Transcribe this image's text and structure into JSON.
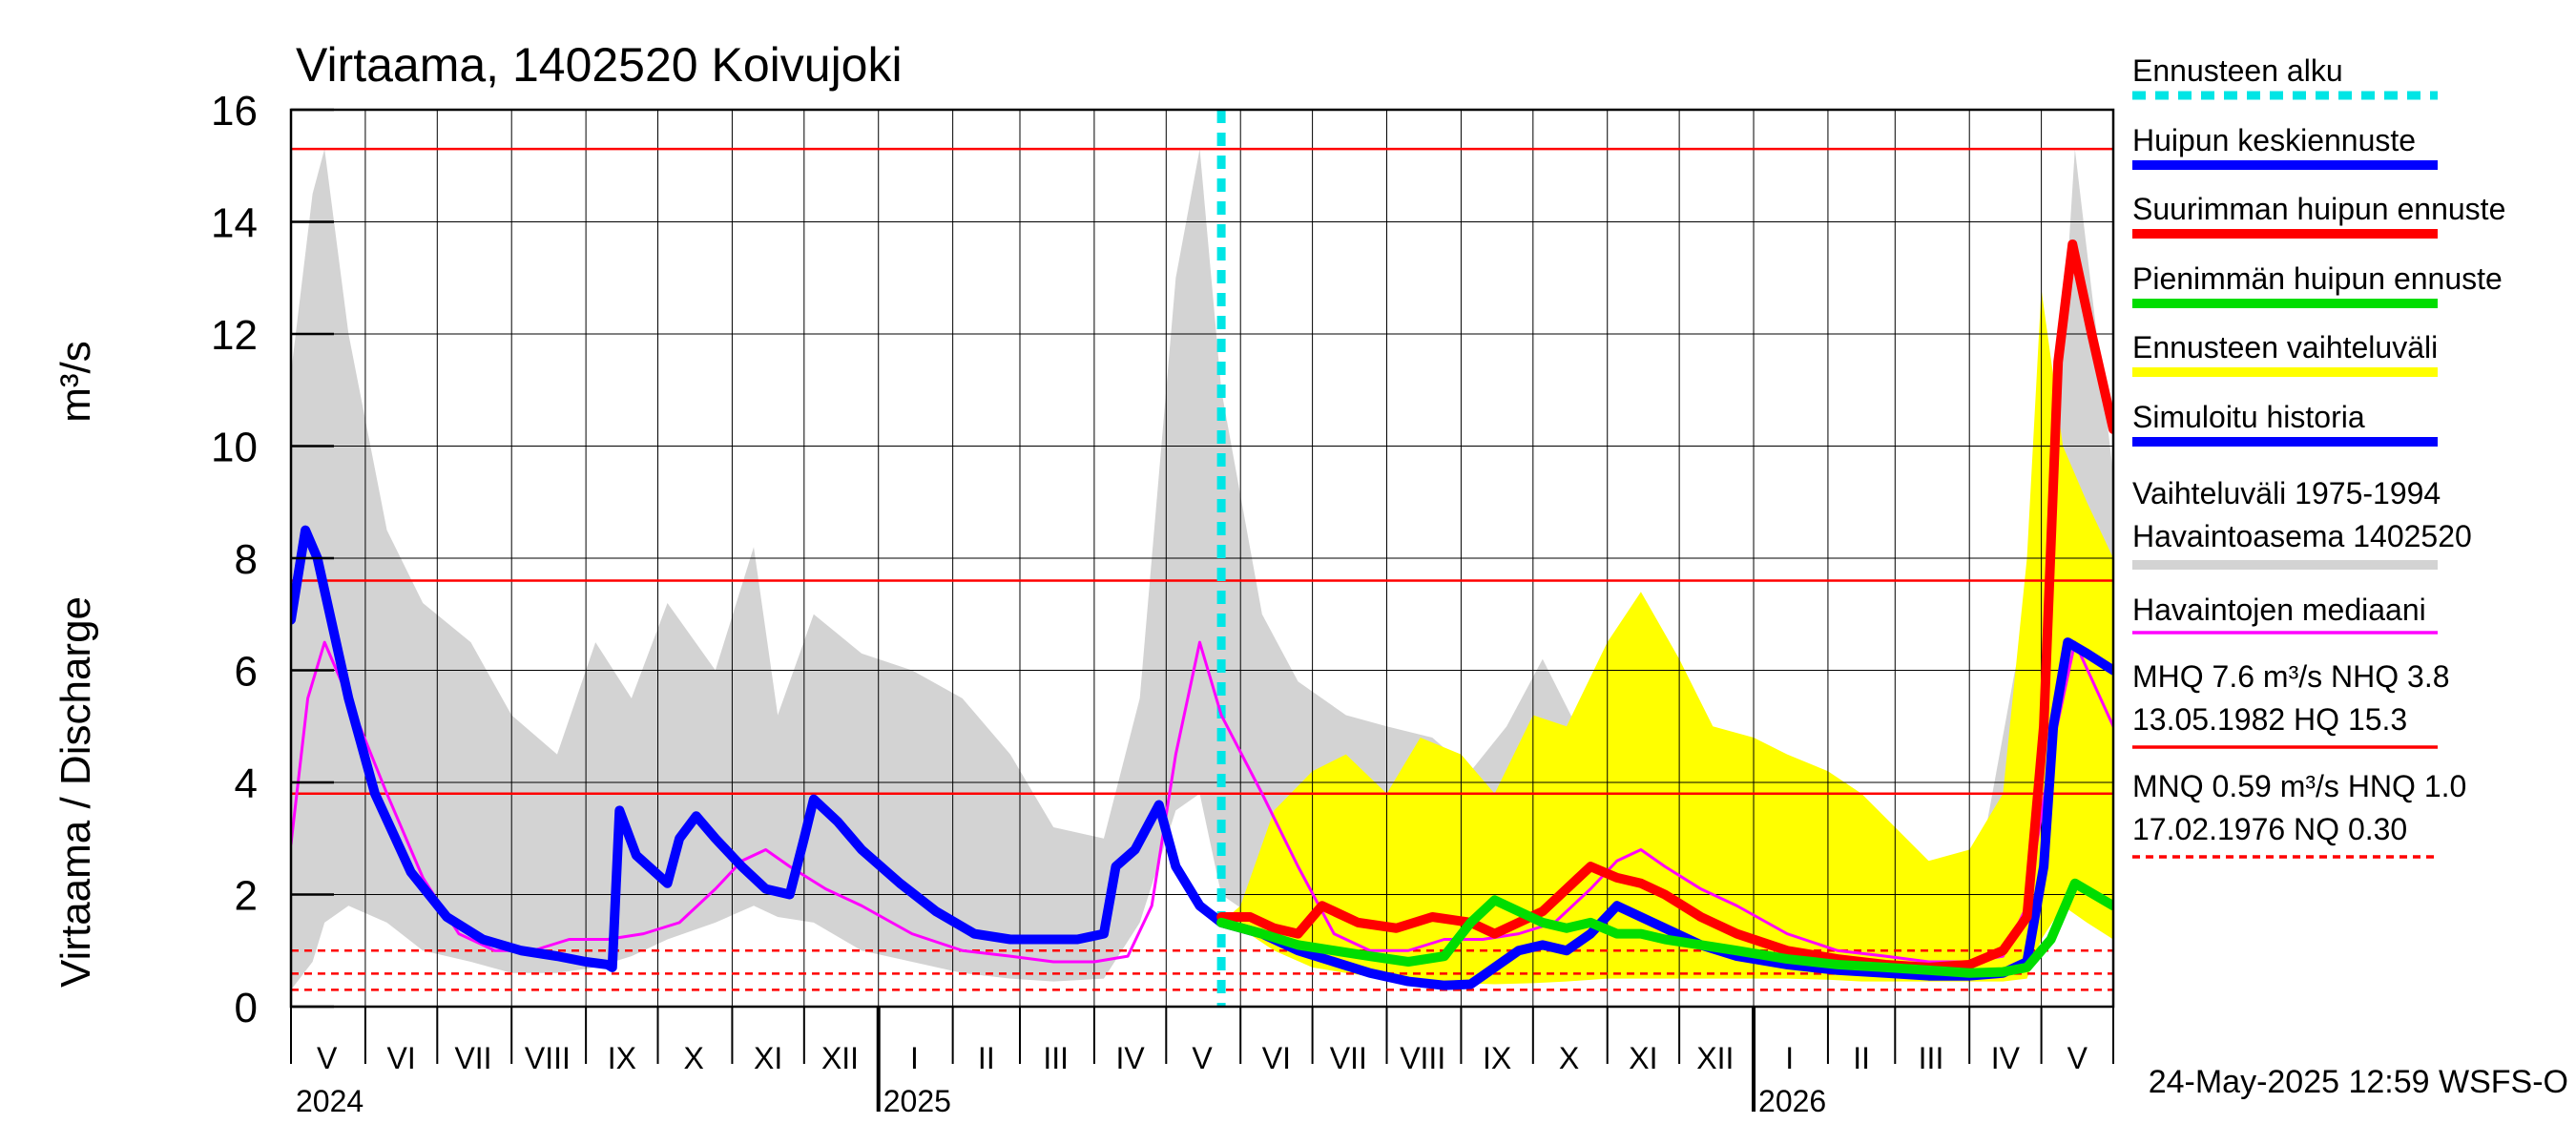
{
  "chart_data": {
    "type": "line",
    "title": "Virtaama, 1402520 Koivujoki",
    "ylabel": "Virtaama / Discharge",
    "yunit": "m³/s",
    "ylim": [
      0,
      16
    ],
    "yticks": [
      0,
      2,
      4,
      6,
      8,
      10,
      12,
      14,
      16
    ],
    "xlim": [
      "2024-05-01",
      "2026-05-31"
    ],
    "grid": true,
    "legend_position": "right",
    "month_labels": [
      {
        "label": "V",
        "date": "2024-05-16"
      },
      {
        "label": "VI",
        "date": "2024-06-16"
      },
      {
        "label": "VII",
        "date": "2024-07-16"
      },
      {
        "label": "VIII",
        "date": "2024-08-16"
      },
      {
        "label": "IX",
        "date": "2024-09-16"
      },
      {
        "label": "X",
        "date": "2024-10-16"
      },
      {
        "label": "XI",
        "date": "2024-11-16"
      },
      {
        "label": "XII",
        "date": "2024-12-16"
      },
      {
        "label": "I",
        "date": "2025-01-16"
      },
      {
        "label": "II",
        "date": "2025-02-15"
      },
      {
        "label": "III",
        "date": "2025-03-16"
      },
      {
        "label": "IV",
        "date": "2025-04-16"
      },
      {
        "label": "V",
        "date": "2025-05-16"
      },
      {
        "label": "VI",
        "date": "2025-06-16"
      },
      {
        "label": "VII",
        "date": "2025-07-16"
      },
      {
        "label": "VIII",
        "date": "2025-08-16"
      },
      {
        "label": "IX",
        "date": "2025-09-16"
      },
      {
        "label": "X",
        "date": "2025-10-16"
      },
      {
        "label": "XI",
        "date": "2025-11-16"
      },
      {
        "label": "XII",
        "date": "2025-12-16"
      },
      {
        "label": "I",
        "date": "2026-01-16"
      },
      {
        "label": "II",
        "date": "2026-02-15"
      },
      {
        "label": "III",
        "date": "2026-03-16"
      },
      {
        "label": "IV",
        "date": "2026-04-16"
      },
      {
        "label": "V",
        "date": "2026-05-16"
      }
    ],
    "year_labels": [
      {
        "label": "2024",
        "date": "2024-05-01"
      },
      {
        "label": "2025",
        "date": "2025-01-01"
      },
      {
        "label": "2026",
        "date": "2026-01-01"
      }
    ],
    "forecast_start": "2025-05-24",
    "reference_lines": [
      {
        "value": 15.3,
        "style": "solid",
        "color": "#ff0000"
      },
      {
        "value": 7.6,
        "style": "solid",
        "color": "#ff0000"
      },
      {
        "value": 3.8,
        "style": "solid",
        "color": "#ff0000"
      },
      {
        "value": 1.0,
        "style": "dashed",
        "color": "#ff0000"
      },
      {
        "value": 0.59,
        "style": "dashed",
        "color": "#ff0000"
      },
      {
        "value": 0.3,
        "style": "dashed",
        "color": "#ff0000"
      }
    ],
    "series": [
      {
        "name": "Vaihteluväli 1975-1994 Havaintoasema 1402520",
        "kind": "band",
        "color": "#d3d3d3",
        "x": [
          "2024-05-01",
          "2024-05-10",
          "2024-05-15",
          "2024-05-25",
          "2024-06-10",
          "2024-06-25",
          "2024-07-15",
          "2024-08-01",
          "2024-08-20",
          "2024-09-05",
          "2024-09-20",
          "2024-10-05",
          "2024-10-25",
          "2024-11-10",
          "2024-11-20",
          "2024-12-05",
          "2024-12-25",
          "2025-01-15",
          "2025-02-05",
          "2025-02-25",
          "2025-03-15",
          "2025-04-05",
          "2025-04-20",
          "2025-05-05",
          "2025-05-15",
          "2025-05-24",
          "2025-06-10",
          "2025-06-25",
          "2025-07-15",
          "2025-08-01",
          "2025-08-20",
          "2025-09-05",
          "2025-09-20",
          "2025-10-05",
          "2025-10-25",
          "2025-11-10",
          "2025-11-20",
          "2025-12-05",
          "2025-12-25",
          "2026-01-15",
          "2026-02-05",
          "2026-02-25",
          "2026-03-15",
          "2026-04-05",
          "2026-04-20",
          "2026-05-05",
          "2026-05-15",
          "2026-05-31"
        ],
        "upper": [
          11.3,
          14.5,
          15.3,
          12,
          8.5,
          7.2,
          6.5,
          5.2,
          4.5,
          6.5,
          5.5,
          7.2,
          6,
          8.2,
          5.2,
          7,
          6.3,
          6,
          5.5,
          4.5,
          3.2,
          3,
          5.5,
          13,
          15.3,
          11,
          7,
          5.8,
          5.2,
          5,
          4.8,
          4.2,
          5,
          6.2,
          4.5,
          5.2,
          4.3,
          4.8,
          4.2,
          4.2,
          3.5,
          3,
          2.6,
          2.5,
          6,
          8.5,
          15.3,
          9.5
        ],
        "lower": [
          0.3,
          0.8,
          1.5,
          1.8,
          1.5,
          1.0,
          0.8,
          0.6,
          0.6,
          0.7,
          0.9,
          1.2,
          1.5,
          1.8,
          1.6,
          1.5,
          1.0,
          0.8,
          0.6,
          0.5,
          0.45,
          0.5,
          1.5,
          3.5,
          3.8,
          2.0,
          1.5,
          1.0,
          0.8,
          0.6,
          0.6,
          0.7,
          0.9,
          1.2,
          1.5,
          1.8,
          1.6,
          1.5,
          1.0,
          0.8,
          0.6,
          0.5,
          0.45,
          0.5,
          1.5,
          3.5,
          4.0,
          3.0
        ]
      },
      {
        "name": "Ennusteen vaihteluväli",
        "kind": "band",
        "color": "#ffff00",
        "x": [
          "2025-05-24",
          "2025-06-01",
          "2025-06-15",
          "2025-07-01",
          "2025-07-15",
          "2025-08-01",
          "2025-08-15",
          "2025-09-01",
          "2025-09-15",
          "2025-10-01",
          "2025-10-15",
          "2025-11-01",
          "2025-11-15",
          "2025-12-01",
          "2025-12-15",
          "2026-01-01",
          "2026-01-15",
          "2026-02-01",
          "2026-02-15",
          "2026-03-01",
          "2026-03-15",
          "2026-04-01",
          "2026-04-15",
          "2026-04-25",
          "2026-05-01",
          "2026-05-10",
          "2026-05-20",
          "2026-05-31"
        ],
        "upper": [
          1.5,
          1.8,
          3.5,
          4.2,
          4.5,
          3.8,
          4.8,
          4.5,
          3.8,
          5.2,
          5,
          6.5,
          7.4,
          6.2,
          5,
          4.8,
          4.5,
          4.2,
          3.8,
          3.2,
          2.6,
          2.8,
          3.8,
          8,
          12.8,
          10,
          9,
          8
        ],
        "lower": [
          1.5,
          1.4,
          1.0,
          0.7,
          0.6,
          0.5,
          0.45,
          0.42,
          0.4,
          0.42,
          0.45,
          0.5,
          0.5,
          0.5,
          0.5,
          0.5,
          0.5,
          0.48,
          0.45,
          0.45,
          0.45,
          0.45,
          0.45,
          0.5,
          1.2,
          1.8,
          1.5,
          1.2
        ]
      },
      {
        "name": "Havaintojen mediaani",
        "kind": "line",
        "color": "#ff00ff",
        "width": 3,
        "x": [
          "2024-05-01",
          "2024-05-08",
          "2024-05-15",
          "2024-05-25",
          "2024-06-10",
          "2024-06-25",
          "2024-07-10",
          "2024-07-25",
          "2024-08-10",
          "2024-08-25",
          "2024-09-10",
          "2024-09-25",
          "2024-10-10",
          "2024-10-25",
          "2024-11-05",
          "2024-11-15",
          "2024-11-25",
          "2024-12-10",
          "2024-12-25",
          "2025-01-15",
          "2025-02-05",
          "2025-02-25",
          "2025-03-15",
          "2025-04-01",
          "2025-04-15",
          "2025-04-25",
          "2025-05-05",
          "2025-05-15",
          "2025-05-24",
          "2025-06-10",
          "2025-06-25",
          "2025-07-10",
          "2025-07-25",
          "2025-08-10",
          "2025-08-25",
          "2025-09-10",
          "2025-09-25",
          "2025-10-10",
          "2025-10-25",
          "2025-11-05",
          "2025-11-15",
          "2025-11-25",
          "2025-12-10",
          "2025-12-25",
          "2026-01-15",
          "2026-02-05",
          "2026-02-25",
          "2026-03-15",
          "2026-04-01",
          "2026-04-15",
          "2026-04-25",
          "2026-05-05",
          "2026-05-15",
          "2026-05-31"
        ],
        "values": [
          2.9,
          5.5,
          6.5,
          5.5,
          3.8,
          2.3,
          1.3,
          1.0,
          1.0,
          1.2,
          1.2,
          1.3,
          1.5,
          2.1,
          2.6,
          2.8,
          2.5,
          2.1,
          1.8,
          1.3,
          1.0,
          0.9,
          0.8,
          0.8,
          0.9,
          1.8,
          4.5,
          6.5,
          5.2,
          3.8,
          2.5,
          1.3,
          1.0,
          1.0,
          1.2,
          1.2,
          1.3,
          1.5,
          2.1,
          2.6,
          2.8,
          2.5,
          2.1,
          1.8,
          1.3,
          1.0,
          0.9,
          0.8,
          0.8,
          0.9,
          1.8,
          4.5,
          6.5,
          5.0
        ]
      },
      {
        "name": "Simuloitu historia",
        "kind": "line",
        "color": "#0000ff",
        "width": 10,
        "x": [
          "2024-05-01",
          "2024-05-07",
          "2024-05-12",
          "2024-05-25",
          "2024-06-05",
          "2024-06-20",
          "2024-07-05",
          "2024-07-20",
          "2024-08-05",
          "2024-08-20",
          "2024-09-01",
          "2024-09-10",
          "2024-09-12",
          "2024-09-15",
          "2024-09-22",
          "2024-10-05",
          "2024-10-10",
          "2024-10-17",
          "2024-10-25",
          "2024-11-05",
          "2024-11-15",
          "2024-11-25",
          "2024-12-01",
          "2024-12-05",
          "2024-12-15",
          "2024-12-25",
          "2025-01-10",
          "2025-01-25",
          "2025-02-10",
          "2025-02-25",
          "2025-03-10",
          "2025-03-25",
          "2025-04-05",
          "2025-04-10",
          "2025-04-18",
          "2025-04-28",
          "2025-05-05",
          "2025-05-15",
          "2025-05-24"
        ],
        "values": [
          6.9,
          8.5,
          8.0,
          5.5,
          3.8,
          2.4,
          1.6,
          1.2,
          1.0,
          0.9,
          0.8,
          0.75,
          0.7,
          3.5,
          2.7,
          2.2,
          3.0,
          3.4,
          3.0,
          2.5,
          2.1,
          2.0,
          3.0,
          3.7,
          3.3,
          2.8,
          2.2,
          1.7,
          1.3,
          1.2,
          1.2,
          1.2,
          1.3,
          2.5,
          2.8,
          3.6,
          2.5,
          1.8,
          1.5
        ]
      },
      {
        "name": "Huipun keskiennuste",
        "kind": "line",
        "color": "#0000ff",
        "width": 10,
        "x": [
          "2025-05-24",
          "2025-06-10",
          "2025-06-25",
          "2025-07-10",
          "2025-07-25",
          "2025-08-10",
          "2025-08-25",
          "2025-09-05",
          "2025-09-15",
          "2025-09-25",
          "2025-10-05",
          "2025-10-15",
          "2025-10-25",
          "2025-11-05",
          "2025-11-15",
          "2025-11-25",
          "2025-12-10",
          "2025-12-25",
          "2026-01-15",
          "2026-02-05",
          "2026-02-25",
          "2026-03-15",
          "2026-04-01",
          "2026-04-15",
          "2026-04-25",
          "2026-05-02",
          "2026-05-06",
          "2026-05-12",
          "2026-05-20",
          "2026-05-31"
        ],
        "values": [
          1.5,
          1.3,
          1.0,
          0.8,
          0.6,
          0.45,
          0.38,
          0.4,
          0.7,
          1.0,
          1.1,
          1.0,
          1.3,
          1.8,
          1.6,
          1.4,
          1.1,
          0.9,
          0.75,
          0.65,
          0.6,
          0.55,
          0.55,
          0.6,
          0.8,
          2.5,
          5.0,
          6.5,
          6.3,
          6.0
        ]
      },
      {
        "name": "Suurimman huipun ennuste",
        "kind": "line",
        "color": "#ff0000",
        "width": 10,
        "x": [
          "2025-05-24",
          "2025-06-05",
          "2025-06-15",
          "2025-06-25",
          "2025-07-05",
          "2025-07-20",
          "2025-08-05",
          "2025-08-20",
          "2025-09-05",
          "2025-09-15",
          "2025-09-25",
          "2025-10-05",
          "2025-10-15",
          "2025-10-25",
          "2025-11-05",
          "2025-11-15",
          "2025-11-25",
          "2025-12-10",
          "2025-12-25",
          "2026-01-15",
          "2026-02-05",
          "2026-02-25",
          "2026-03-15",
          "2026-04-01",
          "2026-04-15",
          "2026-04-25",
          "2026-05-02",
          "2026-05-08",
          "2026-05-14",
          "2026-05-22",
          "2026-05-31"
        ],
        "values": [
          1.6,
          1.6,
          1.4,
          1.3,
          1.8,
          1.5,
          1.4,
          1.6,
          1.5,
          1.3,
          1.5,
          1.7,
          2.1,
          2.5,
          2.3,
          2.2,
          2.0,
          1.6,
          1.3,
          1.0,
          0.85,
          0.75,
          0.7,
          0.75,
          1.0,
          1.6,
          5.0,
          11.5,
          13.6,
          12,
          10.3
        ]
      },
      {
        "name": "Pienimmän huipun ennuste",
        "kind": "line",
        "color": "#00dd00",
        "width": 10,
        "x": [
          "2025-05-24",
          "2025-06-10",
          "2025-06-25",
          "2025-07-10",
          "2025-07-25",
          "2025-08-10",
          "2025-08-25",
          "2025-09-05",
          "2025-09-15",
          "2025-09-25",
          "2025-10-05",
          "2025-10-15",
          "2025-10-25",
          "2025-11-05",
          "2025-11-15",
          "2025-11-25",
          "2025-12-10",
          "2025-12-25",
          "2026-01-15",
          "2026-02-05",
          "2026-02-25",
          "2026-03-15",
          "2026-04-01",
          "2026-04-15",
          "2026-04-25",
          "2026-05-05",
          "2026-05-15",
          "2026-05-31"
        ],
        "values": [
          1.5,
          1.3,
          1.1,
          1.0,
          0.9,
          0.8,
          0.9,
          1.5,
          1.9,
          1.7,
          1.5,
          1.4,
          1.5,
          1.3,
          1.3,
          1.2,
          1.1,
          1.0,
          0.85,
          0.75,
          0.7,
          0.65,
          0.6,
          0.62,
          0.7,
          1.2,
          2.2,
          1.8
        ]
      }
    ],
    "legend": [
      {
        "label": "Ennusteen alku",
        "color": "#00e5e5",
        "style": "dashed"
      },
      {
        "label": "Huipun keskiennuste",
        "color": "#0000ff",
        "style": "solid"
      },
      {
        "label": "Suurimman huipun ennuste",
        "color": "#ff0000",
        "style": "solid"
      },
      {
        "label": "Pienimmän huipun ennuste",
        "color": "#00dd00",
        "style": "solid"
      },
      {
        "label": "Ennusteen vaihteluväli",
        "color": "#ffff00",
        "style": "solid"
      },
      {
        "label": "Simuloitu historia",
        "color": "#0000ff",
        "style": "solid"
      },
      {
        "label": "Vaihteluväli 1975-1994",
        "label2": " Havaintoasema 1402520",
        "color": "#d3d3d3",
        "style": "solid"
      },
      {
        "label": "Havaintojen mediaani",
        "color": "#ff00ff",
        "style": "thin"
      },
      {
        "label": "MHQ  7.6 m³/s NHQ  3.8",
        "label2": "13.05.1982 HQ 15.3",
        "color": "#ff0000",
        "style": "thin"
      },
      {
        "label": "MNQ 0.59 m³/s HNQ  1.0",
        "label2": "17.02.1976 NQ 0.30",
        "color": "#ff0000",
        "style": "dotted"
      }
    ],
    "footer": "24-May-2025 12:59 WSFS-O"
  }
}
